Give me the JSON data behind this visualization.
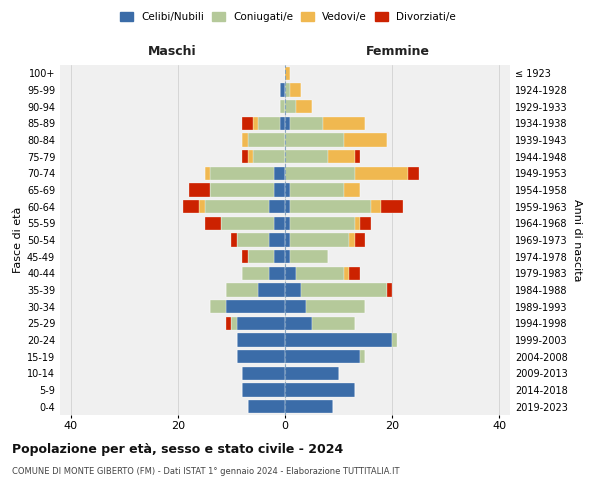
{
  "age_groups": [
    "0-4",
    "5-9",
    "10-14",
    "15-19",
    "20-24",
    "25-29",
    "30-34",
    "35-39",
    "40-44",
    "45-49",
    "50-54",
    "55-59",
    "60-64",
    "65-69",
    "70-74",
    "75-79",
    "80-84",
    "85-89",
    "90-94",
    "95-99",
    "100+"
  ],
  "birth_years": [
    "2019-2023",
    "2014-2018",
    "2009-2013",
    "2004-2008",
    "1999-2003",
    "1994-1998",
    "1989-1993",
    "1984-1988",
    "1979-1983",
    "1974-1978",
    "1969-1973",
    "1964-1968",
    "1959-1963",
    "1954-1958",
    "1949-1953",
    "1944-1948",
    "1939-1943",
    "1934-1938",
    "1929-1933",
    "1924-1928",
    "≤ 1923"
  ],
  "colors": {
    "celibi": "#3b6ca8",
    "coniugati": "#b5c99a",
    "vedovi": "#f0b850",
    "divorziati": "#cc2200"
  },
  "males": {
    "celibi": [
      7,
      8,
      8,
      9,
      9,
      9,
      11,
      5,
      3,
      2,
      3,
      2,
      3,
      2,
      2,
      0,
      0,
      1,
      0,
      1,
      0
    ],
    "coniugati": [
      0,
      0,
      0,
      0,
      0,
      1,
      3,
      6,
      5,
      5,
      6,
      10,
      12,
      12,
      12,
      6,
      7,
      4,
      1,
      0,
      0
    ],
    "vedovi": [
      0,
      0,
      0,
      0,
      0,
      0,
      0,
      0,
      0,
      0,
      0,
      0,
      1,
      0,
      1,
      1,
      1,
      1,
      0,
      0,
      0
    ],
    "divorziati": [
      0,
      0,
      0,
      0,
      0,
      1,
      0,
      0,
      0,
      1,
      1,
      3,
      3,
      4,
      0,
      1,
      0,
      2,
      0,
      0,
      0
    ]
  },
  "females": {
    "celibi": [
      9,
      13,
      10,
      14,
      20,
      5,
      4,
      3,
      2,
      1,
      1,
      1,
      1,
      1,
      0,
      0,
      0,
      1,
      0,
      0,
      0
    ],
    "coniugati": [
      0,
      0,
      0,
      1,
      1,
      8,
      11,
      16,
      9,
      7,
      11,
      12,
      15,
      10,
      13,
      8,
      11,
      6,
      2,
      1,
      0
    ],
    "vedovi": [
      0,
      0,
      0,
      0,
      0,
      0,
      0,
      0,
      1,
      0,
      1,
      1,
      2,
      3,
      10,
      5,
      8,
      8,
      3,
      2,
      1
    ],
    "divorziati": [
      0,
      0,
      0,
      0,
      0,
      0,
      0,
      1,
      2,
      0,
      2,
      2,
      4,
      0,
      2,
      1,
      0,
      0,
      0,
      0,
      0
    ]
  },
  "xlim": 42,
  "title_main": "Popolazione per età, sesso e stato civile - 2024",
  "title_sub": "COMUNE DI MONTE GIBERTO (FM) - Dati ISTAT 1° gennaio 2024 - Elaborazione TUTTITALIA.IT",
  "ylabel_left": "Fasce di età",
  "ylabel_right": "Anni di nascita",
  "xlabel_maschi": "Maschi",
  "xlabel_femmine": "Femmine",
  "background_color": "#f0f0f0",
  "grid_color": "#cccccc"
}
